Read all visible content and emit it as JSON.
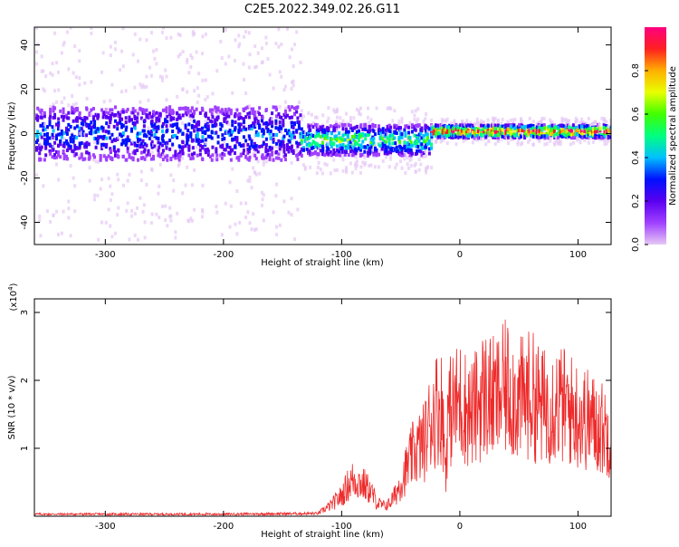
{
  "figure_title": "C2E5.2022.349.02.26.G11",
  "colors": {
    "snr_line": "#ee2a2a",
    "colorbar": [
      "#e6c8f5",
      "#a040ff",
      "#5a00f0",
      "#0010ff",
      "#00c0ff",
      "#00ff80",
      "#40ff00",
      "#e8ff00",
      "#ffb000",
      "#ff2020",
      "#ff0080"
    ]
  },
  "chart_data": [
    {
      "type": "heatmap",
      "title": "",
      "xlabel": "Height of straight line (km)",
      "ylabel": "Frequency (Hz)",
      "xlim": [
        -360,
        128
      ],
      "ylim": [
        -50,
        48
      ],
      "x_ticks": [
        -300,
        -200,
        -100,
        0,
        100
      ],
      "y_ticks": [
        -40,
        -20,
        0,
        20,
        40
      ],
      "colorbar": {
        "label": "Normalized spectral amplitude",
        "range": [
          0,
          1
        ],
        "ticks": [
          0.0,
          0.2,
          0.4,
          0.6,
          0.8
        ],
        "tick_labels": [
          "0.0",
          "0.2",
          "0.4",
          "0.6",
          "0.8"
        ]
      },
      "regions": [
        {
          "x_range": [
            -360,
            -135
          ],
          "freq_center": 0,
          "core_halfwidth_hz": 12,
          "noise_halfwidth_hz": 48,
          "peak_amplitude": 0.25
        },
        {
          "x_range": [
            -135,
            -25
          ],
          "freq_center": -3,
          "core_halfwidth_hz": 7,
          "noise_halfwidth_hz": 15,
          "peak_amplitude": 0.5
        },
        {
          "x_range": [
            -25,
            128
          ],
          "freq_center": 1,
          "core_halfwidth_hz": 3,
          "noise_halfwidth_hz": 6,
          "peak_amplitude": 0.95
        }
      ]
    },
    {
      "type": "line",
      "title": "",
      "xlabel": "Height of straight line (km)",
      "ylabel": "SNR (10 * v/v)",
      "y_scale_label": "(x10",
      "y_scale_exponent": "4",
      "xlim": [
        -360,
        128
      ],
      "ylim": [
        0,
        3.2
      ],
      "x_ticks": [
        -300,
        -200,
        -100,
        0,
        100
      ],
      "y_ticks": [
        1,
        2,
        3
      ],
      "series": [
        {
          "x": [
            -360,
            -300,
            -200,
            -120,
            -110,
            -100,
            -95,
            -90,
            -85,
            -80,
            -75,
            -70,
            -65,
            -60,
            -55,
            -50,
            -45,
            -40,
            -35,
            -30,
            -25,
            -20,
            -15,
            -12,
            -10,
            -5,
            0,
            10,
            20,
            30,
            40,
            50,
            60,
            70,
            80,
            90,
            100,
            110,
            120,
            128
          ],
          "y": [
            0.03,
            0.03,
            0.03,
            0.04,
            0.15,
            0.3,
            0.45,
            0.55,
            0.5,
            0.45,
            0.35,
            0.2,
            0.15,
            0.18,
            0.3,
            0.5,
            0.7,
            0.9,
            1.0,
            1.1,
            1.4,
            1.6,
            1.6,
            0.7,
            1.5,
            1.6,
            1.7,
            1.5,
            1.8,
            1.7,
            1.9,
            1.7,
            1.8,
            1.6,
            1.7,
            1.6,
            1.5,
            1.4,
            1.3,
            1.2
          ]
        }
      ]
    }
  ]
}
